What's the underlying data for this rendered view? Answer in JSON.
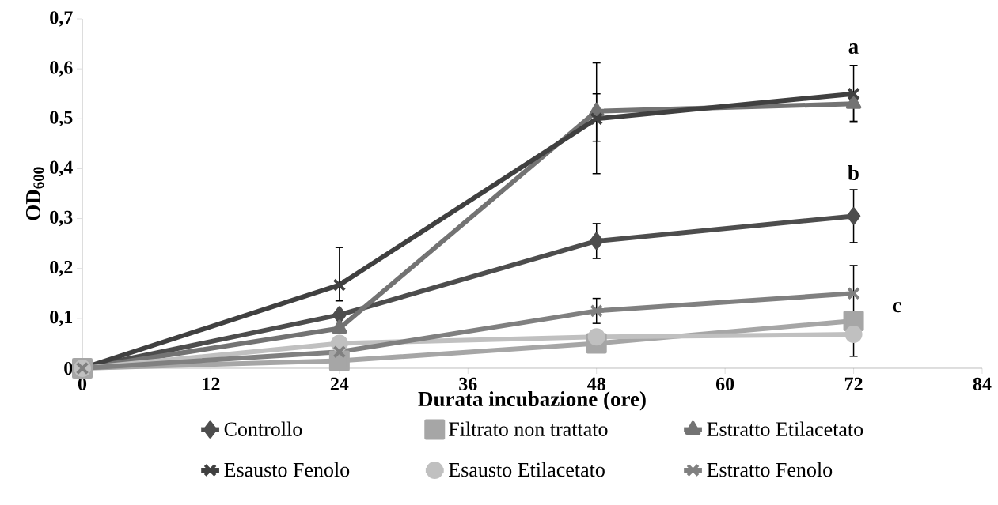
{
  "chart_data": {
    "type": "line",
    "xlabel": "Durata incubazione (ore)",
    "ylabel": "OD$_{600}$",
    "x": [
      0,
      24,
      48,
      72
    ],
    "xlim": [
      0,
      84
    ],
    "xticks": [
      0,
      12,
      24,
      36,
      48,
      60,
      72,
      84
    ],
    "ylim": [
      0,
      0.7
    ],
    "yticks": [
      {
        "value": 0,
        "label": "0"
      },
      {
        "value": 0.1,
        "label": "0,1"
      },
      {
        "value": 0.2,
        "label": "0,2"
      },
      {
        "value": 0.3,
        "label": "0,3"
      },
      {
        "value": 0.4,
        "label": "0,4"
      },
      {
        "value": 0.5,
        "label": "0,5"
      },
      {
        "value": 0.6,
        "label": "0,6"
      },
      {
        "value": 0.7,
        "label": "0,7"
      }
    ],
    "grid": false,
    "legend": "bottom",
    "line_style": "solid",
    "series": [
      {
        "name": "Controllo",
        "color": "#4d4d4d",
        "marker": "diamond",
        "values": [
          0,
          0.107,
          0.255,
          0.305
        ],
        "errors": [
          null,
          null,
          [
            0.22,
            0.29
          ],
          [
            0.252,
            0.358
          ]
        ]
      },
      {
        "name": "Filtrato non trattato",
        "color": "#a6a6a6",
        "marker": "square",
        "values": [
          0,
          0.015,
          0.05,
          0.095
        ]
      },
      {
        "name": "Estratto Etilacetato",
        "color": "#737373",
        "marker": "triangle",
        "values": [
          0,
          0.08,
          0.515,
          0.53
        ],
        "errors": [
          null,
          null,
          [
            0.455,
            0.55
          ],
          [
            0.493,
            0.535
          ]
        ]
      },
      {
        "name": "Esausto Fenolo",
        "color": "#404040",
        "marker": "cross",
        "values": [
          0,
          0.167,
          0.5,
          0.55
        ],
        "errors": [
          null,
          [
            0.135,
            0.242
          ],
          [
            0.39,
            0.612
          ],
          [
            0.495,
            0.607
          ]
        ]
      },
      {
        "name": "Esausto Etilacetato",
        "color": "#c0c0c0",
        "marker": "circle",
        "values": [
          0,
          0.05,
          0.063,
          0.068
        ]
      },
      {
        "name": "Estratto Fenolo",
        "color": "#808080",
        "marker": "cross",
        "values": [
          0,
          0.033,
          0.115,
          0.15
        ],
        "errors": [
          null,
          null,
          [
            0.09,
            0.14
          ],
          [
            0.024,
            0.206
          ]
        ]
      }
    ],
    "annotations": [
      "a",
      "b",
      "c"
    ]
  }
}
